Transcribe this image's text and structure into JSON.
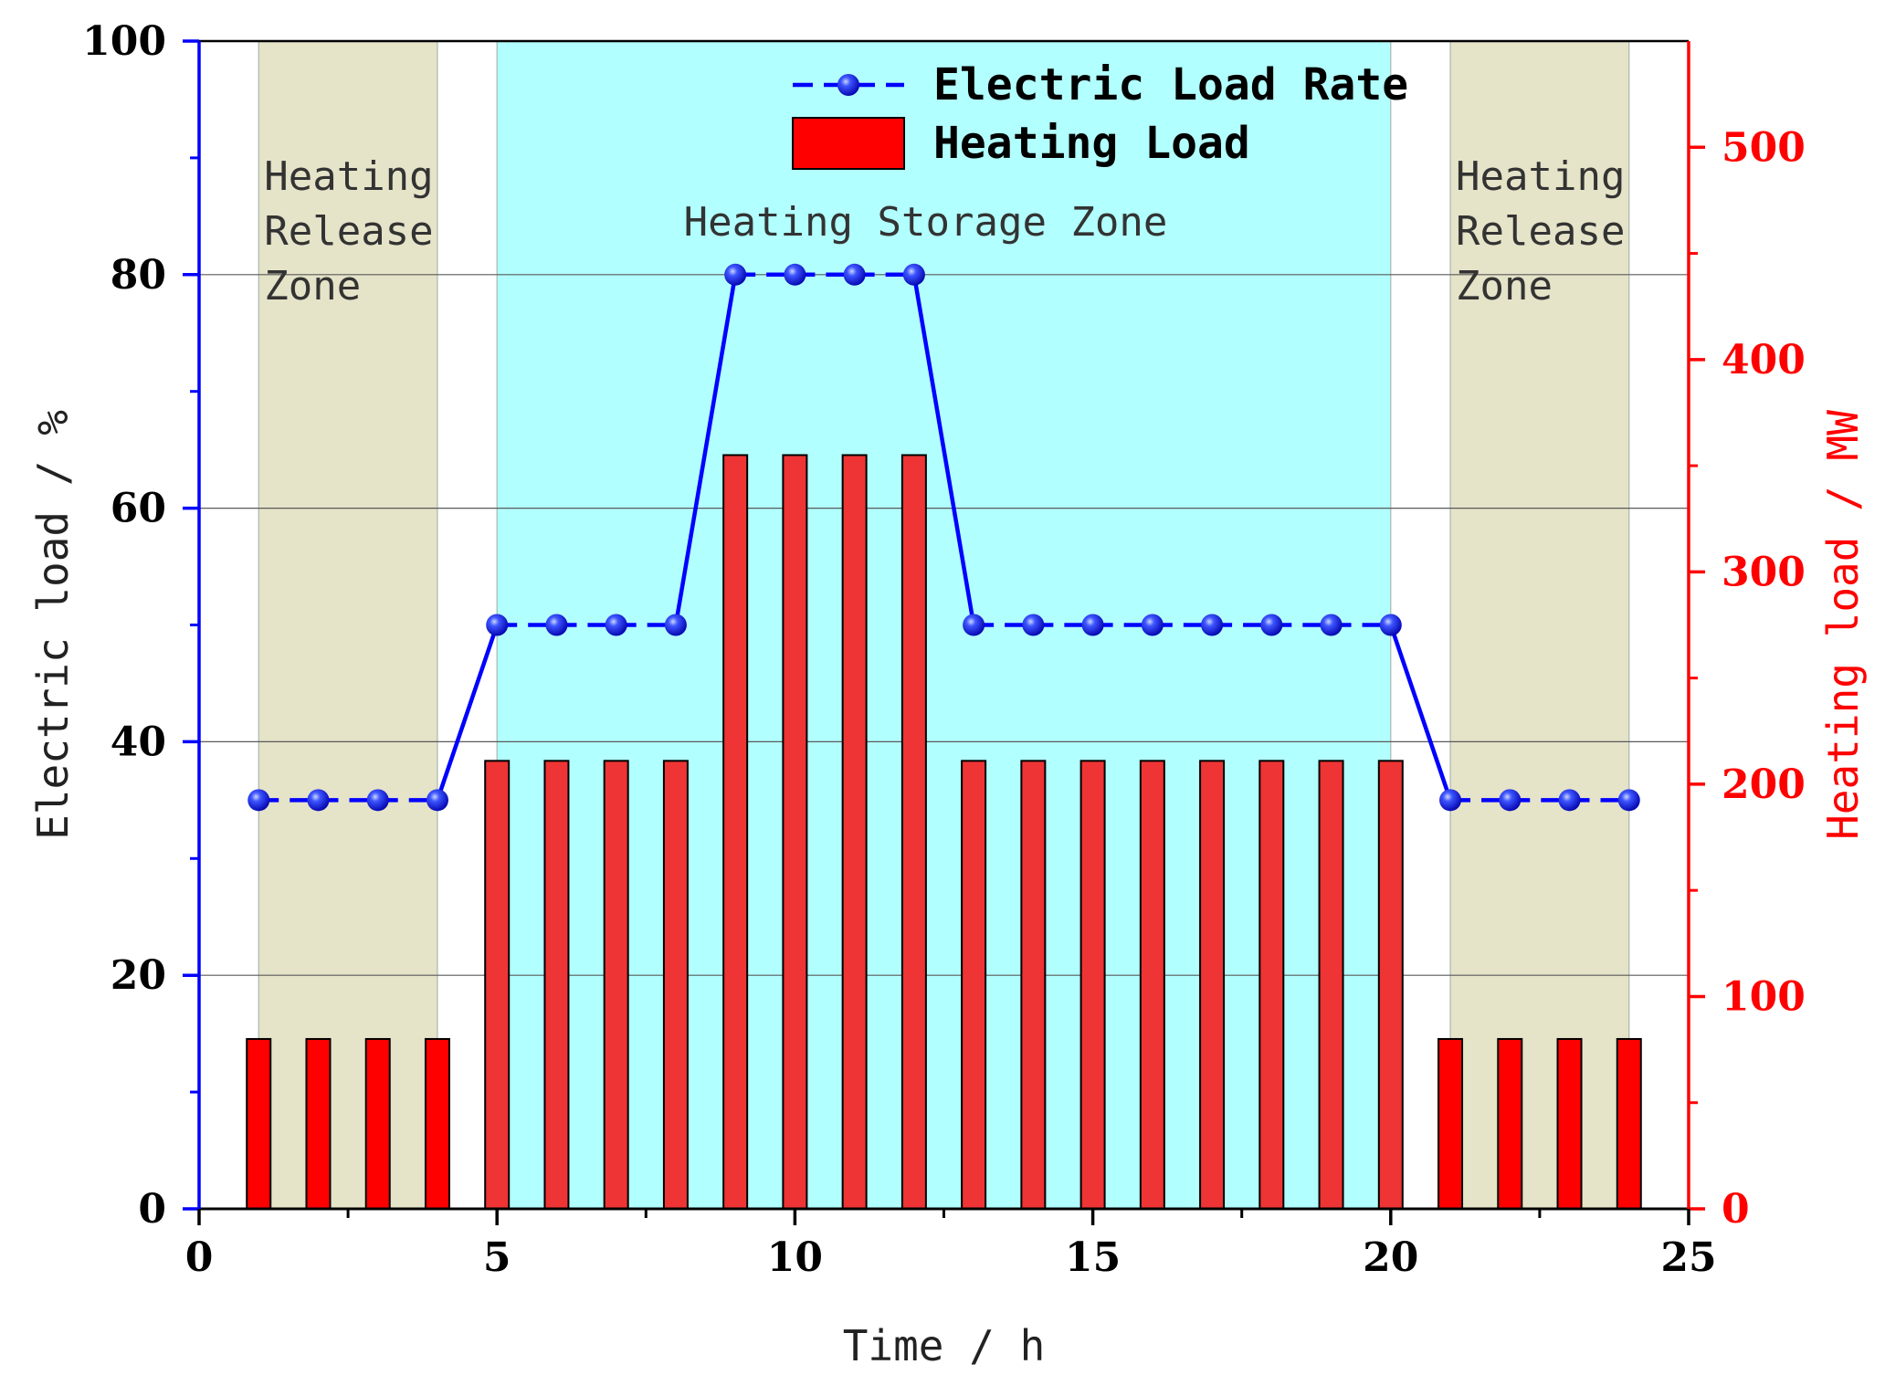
{
  "chart_data": {
    "type": "bar+line",
    "title": "",
    "xlabel": "Time / h",
    "ylabel_left": "Electric load / %",
    "ylabel_right": "Heating load / MW",
    "xlim": [
      0,
      25
    ],
    "ylim_left": [
      0,
      100
    ],
    "ylim_right": [
      0,
      550
    ],
    "x_ticks": [
      "0",
      "5",
      "10",
      "15",
      "20",
      "25"
    ],
    "y_left_ticks": [
      "0",
      "20",
      "40",
      "60",
      "80",
      "100"
    ],
    "y_right_ticks": [
      "0",
      "100",
      "200",
      "300",
      "400",
      "500"
    ],
    "grid": "horizontal",
    "legend_position": "top-center",
    "x": [
      1,
      2,
      3,
      4,
      5,
      6,
      7,
      8,
      9,
      10,
      11,
      12,
      13,
      14,
      15,
      16,
      17,
      18,
      19,
      20,
      21,
      22,
      23,
      24
    ],
    "series": [
      {
        "name": "Electric Load Rate",
        "kind": "line",
        "axis": "left",
        "color": "#0000ff",
        "values": [
          35,
          35,
          35,
          35,
          50,
          50,
          50,
          50,
          80,
          80,
          80,
          80,
          50,
          50,
          50,
          50,
          50,
          50,
          50,
          50,
          35,
          35,
          35,
          35
        ]
      },
      {
        "name": "Heating Load",
        "kind": "bar",
        "axis": "right",
        "color": "#ff0000",
        "values": [
          80,
          80,
          80,
          80,
          211,
          211,
          211,
          211,
          355,
          355,
          355,
          355,
          211,
          211,
          211,
          211,
          211,
          211,
          211,
          211,
          80,
          80,
          80,
          80
        ]
      }
    ],
    "zones": [
      {
        "label_lines": [
          "Heating",
          "Release",
          "Zone"
        ],
        "x_start": 1,
        "x_end": 4,
        "color": "#e5e3c8"
      },
      {
        "label_lines": [
          "Heating Storage Zone"
        ],
        "x_start": 5,
        "x_end": 20,
        "color": "#b2ffff"
      },
      {
        "label_lines": [
          "Heating",
          "Release",
          "Zone"
        ],
        "x_start": 21,
        "x_end": 24,
        "color": "#e5e3c8"
      }
    ],
    "colors": {
      "left_axis": "#0000ff",
      "right_axis": "#ff0000",
      "bar_fill_bright": "#ff0000",
      "bar_fill_storage": "#ee3434",
      "marker": "#1a2fff"
    }
  }
}
